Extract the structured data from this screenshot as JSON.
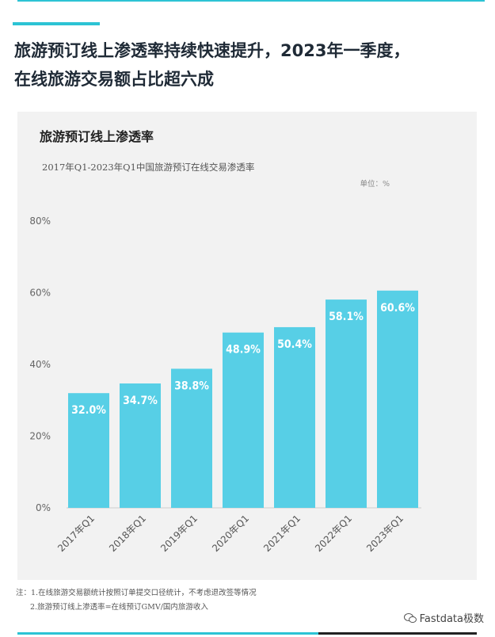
{
  "headline": {
    "line1": "旅游预订线上渗透率持续快速提升，2023年一季度，",
    "line2": "在线旅游交易额占比超六成"
  },
  "chart_data": {
    "type": "bar",
    "title": "旅游预订线上渗透率",
    "subtitle": "2017年Q1-2023年Q1中国旅游预订在线交易渗透率",
    "unit_label": "单位：%",
    "categories": [
      "2017年Q1",
      "2018年Q1",
      "2019年Q1",
      "2020年Q1",
      "2021年Q1",
      "2022年Q1",
      "2023年Q1"
    ],
    "values": [
      32.0,
      34.7,
      38.8,
      48.9,
      50.4,
      58.1,
      60.6
    ],
    "value_labels": [
      "32.0%",
      "34.7%",
      "38.8%",
      "48.9%",
      "50.4%",
      "58.1%",
      "60.6%"
    ],
    "y_ticks": [
      0,
      20,
      40,
      60,
      80
    ],
    "y_tick_labels": [
      "0%",
      "20%",
      "40%",
      "60%",
      "80%"
    ],
    "ylim": [
      0,
      80
    ],
    "xlabel": "",
    "ylabel": "",
    "grid": false,
    "bar_color": "#57cfe6"
  },
  "notes": {
    "note1": "注：1.在线旅游交易额统计按照订单提交口径统计，不考虑退改签等情况",
    "note2": "2.旅游预订线上渗透率=在线预订GMV/国内旅游收入"
  },
  "watermark": {
    "text": "Fastdata极数",
    "icon": "wechat-icon"
  }
}
